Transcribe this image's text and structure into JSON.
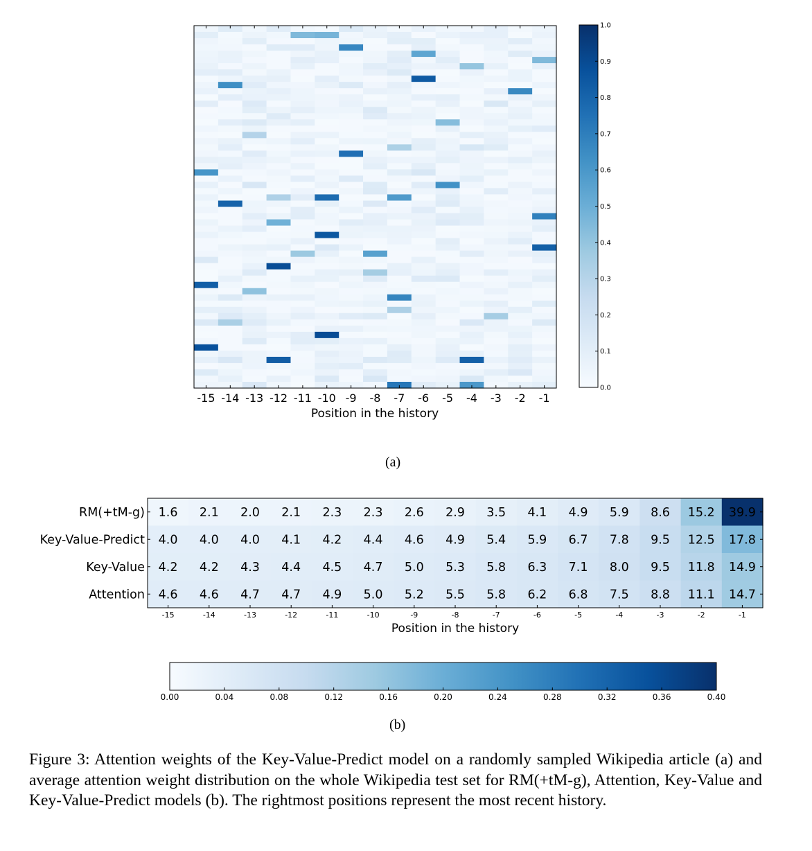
{
  "chart_data": [
    {
      "type": "heatmap",
      "panel_label": "(a)",
      "xlabel": "Position in the history",
      "x_ticks": [
        "-15",
        "-14",
        "-13",
        "-12",
        "-11",
        "-10",
        "-9",
        "-8",
        "-7",
        "-6",
        "-5",
        "-4",
        "-3",
        "-2",
        "-1"
      ],
      "colorbar": {
        "min": 0.0,
        "max": 1.0,
        "ticks": [
          "0.0",
          "0.1",
          "0.2",
          "0.3",
          "0.4",
          "0.5",
          "0.6",
          "0.7",
          "0.8",
          "0.9",
          "1.0"
        ]
      },
      "colormap": "Blues",
      "rows": 58,
      "values": []
    },
    {
      "type": "heatmap",
      "panel_label": "(b)",
      "xlabel": "Position in the history",
      "x_ticks": [
        "-15",
        "-14",
        "-13",
        "-12",
        "-11",
        "-10",
        "-9",
        "-8",
        "-7",
        "-6",
        "-5",
        "-4",
        "-3",
        "-2",
        "-1"
      ],
      "y_labels": [
        "RM(+tM-g)",
        "Key-Value-Predict",
        "Key-Value",
        "Attention"
      ],
      "values": [
        [
          1.6,
          2.1,
          2.0,
          2.1,
          2.3,
          2.3,
          2.6,
          2.9,
          3.5,
          4.1,
          4.9,
          5.9,
          8.6,
          15.2,
          39.9
        ],
        [
          4.0,
          4.0,
          4.0,
          4.1,
          4.2,
          4.4,
          4.6,
          4.9,
          5.4,
          5.9,
          6.7,
          7.8,
          9.5,
          12.5,
          17.8
        ],
        [
          4.2,
          4.2,
          4.3,
          4.4,
          4.5,
          4.7,
          5.0,
          5.3,
          5.8,
          6.3,
          7.1,
          8.0,
          9.5,
          11.8,
          14.9
        ],
        [
          4.6,
          4.6,
          4.7,
          4.7,
          4.9,
          5.0,
          5.2,
          5.5,
          5.8,
          6.2,
          6.8,
          7.5,
          8.8,
          11.1,
          14.7
        ]
      ],
      "colorbar": {
        "min": 0.0,
        "max": 0.4,
        "ticks": [
          "0.00",
          "0.04",
          "0.08",
          "0.12",
          "0.16",
          "0.20",
          "0.24",
          "0.28",
          "0.32",
          "0.36",
          "0.40"
        ]
      },
      "colormap": "Blues"
    }
  ],
  "caption": "Figure 3: Attention weights of the Key-Value-Predict model on a randomly sampled Wikipedia article (a) and average attention weight distribution on the whole Wikipedia test set for RM(+tM-g), Attention, Key-Value and Key-Value-Predict models (b). The rightmost positions represent the most recent history."
}
